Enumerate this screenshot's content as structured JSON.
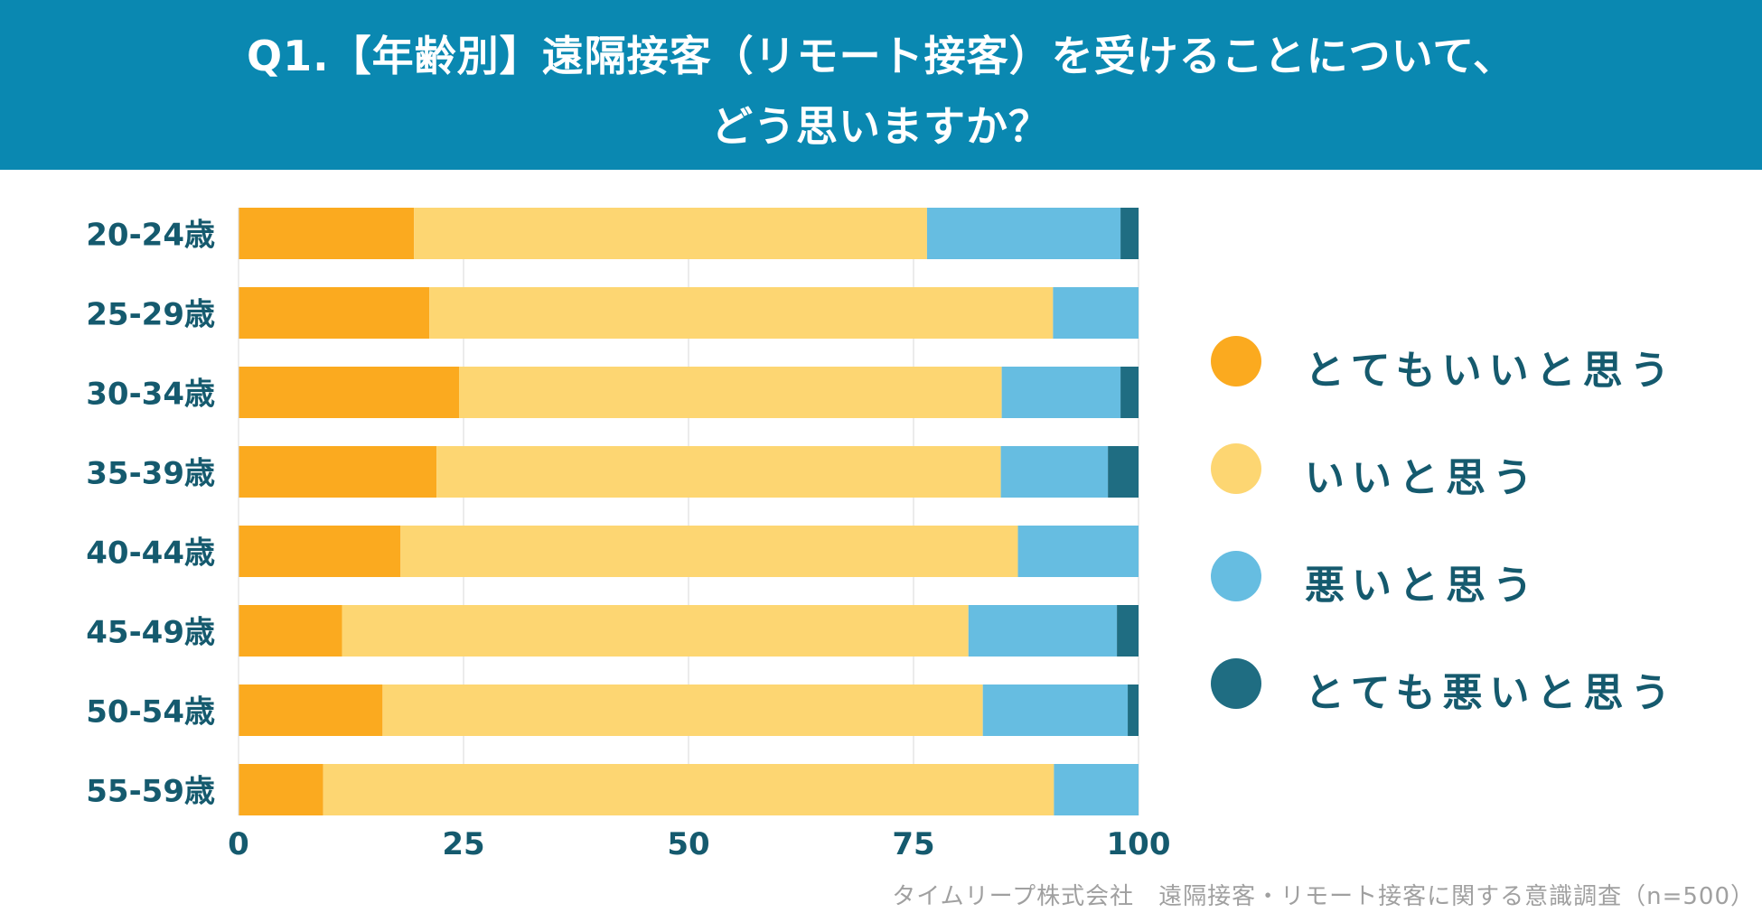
{
  "title": {
    "line1": "Q1.【年齢別】遠隔接客（リモート接客）を受けることについて、",
    "line2": "どう思いますか？"
  },
  "source_note": "タイムリープ株式会社　遠隔接客・リモート接客に関する意識調査（n=500）",
  "colors": {
    "header_bg": "#0a88b1",
    "very_good": "#fbaa1f",
    "good": "#fdd672",
    "bad": "#66bde1",
    "very_bad": "#1f6d82",
    "axis_text": "#155a6e",
    "grid": "#d9d9d9"
  },
  "legend": [
    {
      "label": "とてもいいと思う",
      "color": "#fbaa1f"
    },
    {
      "label": "いいと思う",
      "color": "#fdd672"
    },
    {
      "label": "悪いと思う",
      "color": "#66bde1"
    },
    {
      "label": "とても悪いと思う",
      "color": "#1f6d82"
    }
  ],
  "chart_data": {
    "type": "bar",
    "orientation": "horizontal",
    "stacked": true,
    "title": "Q1.【年齢別】遠隔接客（リモート接客）を受けることについて、どう思いますか？",
    "categories": [
      "20-24歳",
      "25-29歳",
      "30-34歳",
      "35-39歳",
      "40-44歳",
      "45-49歳",
      "50-54歳",
      "55-59歳"
    ],
    "series": [
      {
        "name": "とてもいいと思う",
        "color": "#fbaa1f",
        "values": [
          19.5,
          21.2,
          24.5,
          22.0,
          18.0,
          11.5,
          16.0,
          9.4
        ]
      },
      {
        "name": "いいと思う",
        "color": "#fdd672",
        "values": [
          57.0,
          69.3,
          60.3,
          62.7,
          68.6,
          69.6,
          66.7,
          81.2
        ]
      },
      {
        "name": "悪いと思う",
        "color": "#66bde1",
        "values": [
          21.5,
          9.5,
          13.2,
          11.9,
          13.4,
          16.5,
          16.1,
          9.4
        ]
      },
      {
        "name": "とても悪いと思う",
        "color": "#1f6d82",
        "values": [
          2.0,
          0.0,
          2.0,
          3.4,
          0.0,
          2.4,
          1.2,
          0.0
        ]
      }
    ],
    "xlim": [
      0,
      100
    ],
    "xticks": [
      "0",
      "25",
      "50",
      "75",
      "100"
    ],
    "xlabel": "",
    "ylabel": "",
    "grid": true,
    "legend_position": "right"
  }
}
